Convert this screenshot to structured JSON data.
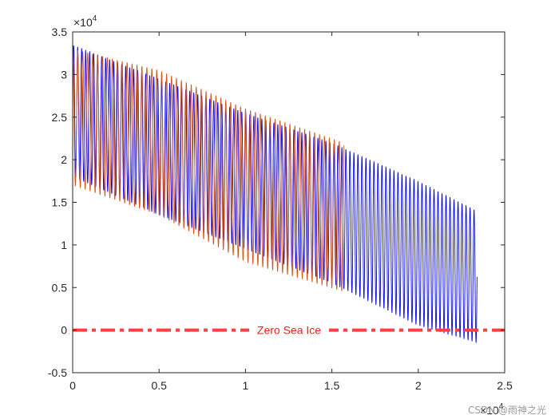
{
  "chart_data": {
    "type": "line",
    "title": "",
    "xlabel": "",
    "ylabel": "",
    "x_scale_label": {
      "base": "×10",
      "power": "4"
    },
    "y_scale_label": {
      "base": "×10",
      "power": "4"
    },
    "xlim": [
      0,
      2.5
    ],
    "ylim": [
      -0.5,
      3.5
    ],
    "xticks": [
      0,
      0.5,
      1,
      1.5,
      2,
      2.5
    ],
    "xtick_labels": [
      "0",
      "0.5",
      "1",
      "1.5",
      "2",
      "2.5"
    ],
    "yticks": [
      -0.5,
      0,
      0.5,
      1,
      1.5,
      2,
      2.5,
      3,
      3.5
    ],
    "ytick_labels": [
      "-0.5",
      "0",
      "0.5",
      "1",
      "1.5",
      "2",
      "2.5",
      "3",
      "3.5"
    ],
    "grid": false,
    "series": [
      {
        "name": "blue series",
        "color": "#0000ff",
        "x_end": 2.34,
        "cycles": 101,
        "upper_envelope": {
          "x": [
            0,
            0.5,
            1,
            1.5,
            2,
            2.34
          ],
          "y": [
            3.35,
            2.95,
            2.55,
            2.2,
            1.75,
            1.4
          ]
        },
        "lower_envelope": {
          "x": [
            0,
            0.5,
            1,
            1.5,
            2,
            2.34
          ],
          "y": [
            1.8,
            1.35,
            0.95,
            0.55,
            0.05,
            -0.15
          ]
        }
      },
      {
        "name": "orange series",
        "color": "#d95319",
        "x_end": 1.57,
        "cycles": 55,
        "upper_envelope": {
          "x": [
            0,
            0.5,
            1,
            1.57
          ],
          "y": [
            3.3,
            3.05,
            2.6,
            2.2
          ]
        },
        "lower_envelope": {
          "x": [
            0,
            0.5,
            1,
            1.57
          ],
          "y": [
            1.7,
            1.35,
            0.8,
            0.45
          ]
        }
      }
    ],
    "reference_line": {
      "y": 0,
      "color": "#ff4040",
      "style": "dash-dot",
      "label": "Zero Sea Ice"
    }
  },
  "watermark": "CSDN @雨神之光"
}
